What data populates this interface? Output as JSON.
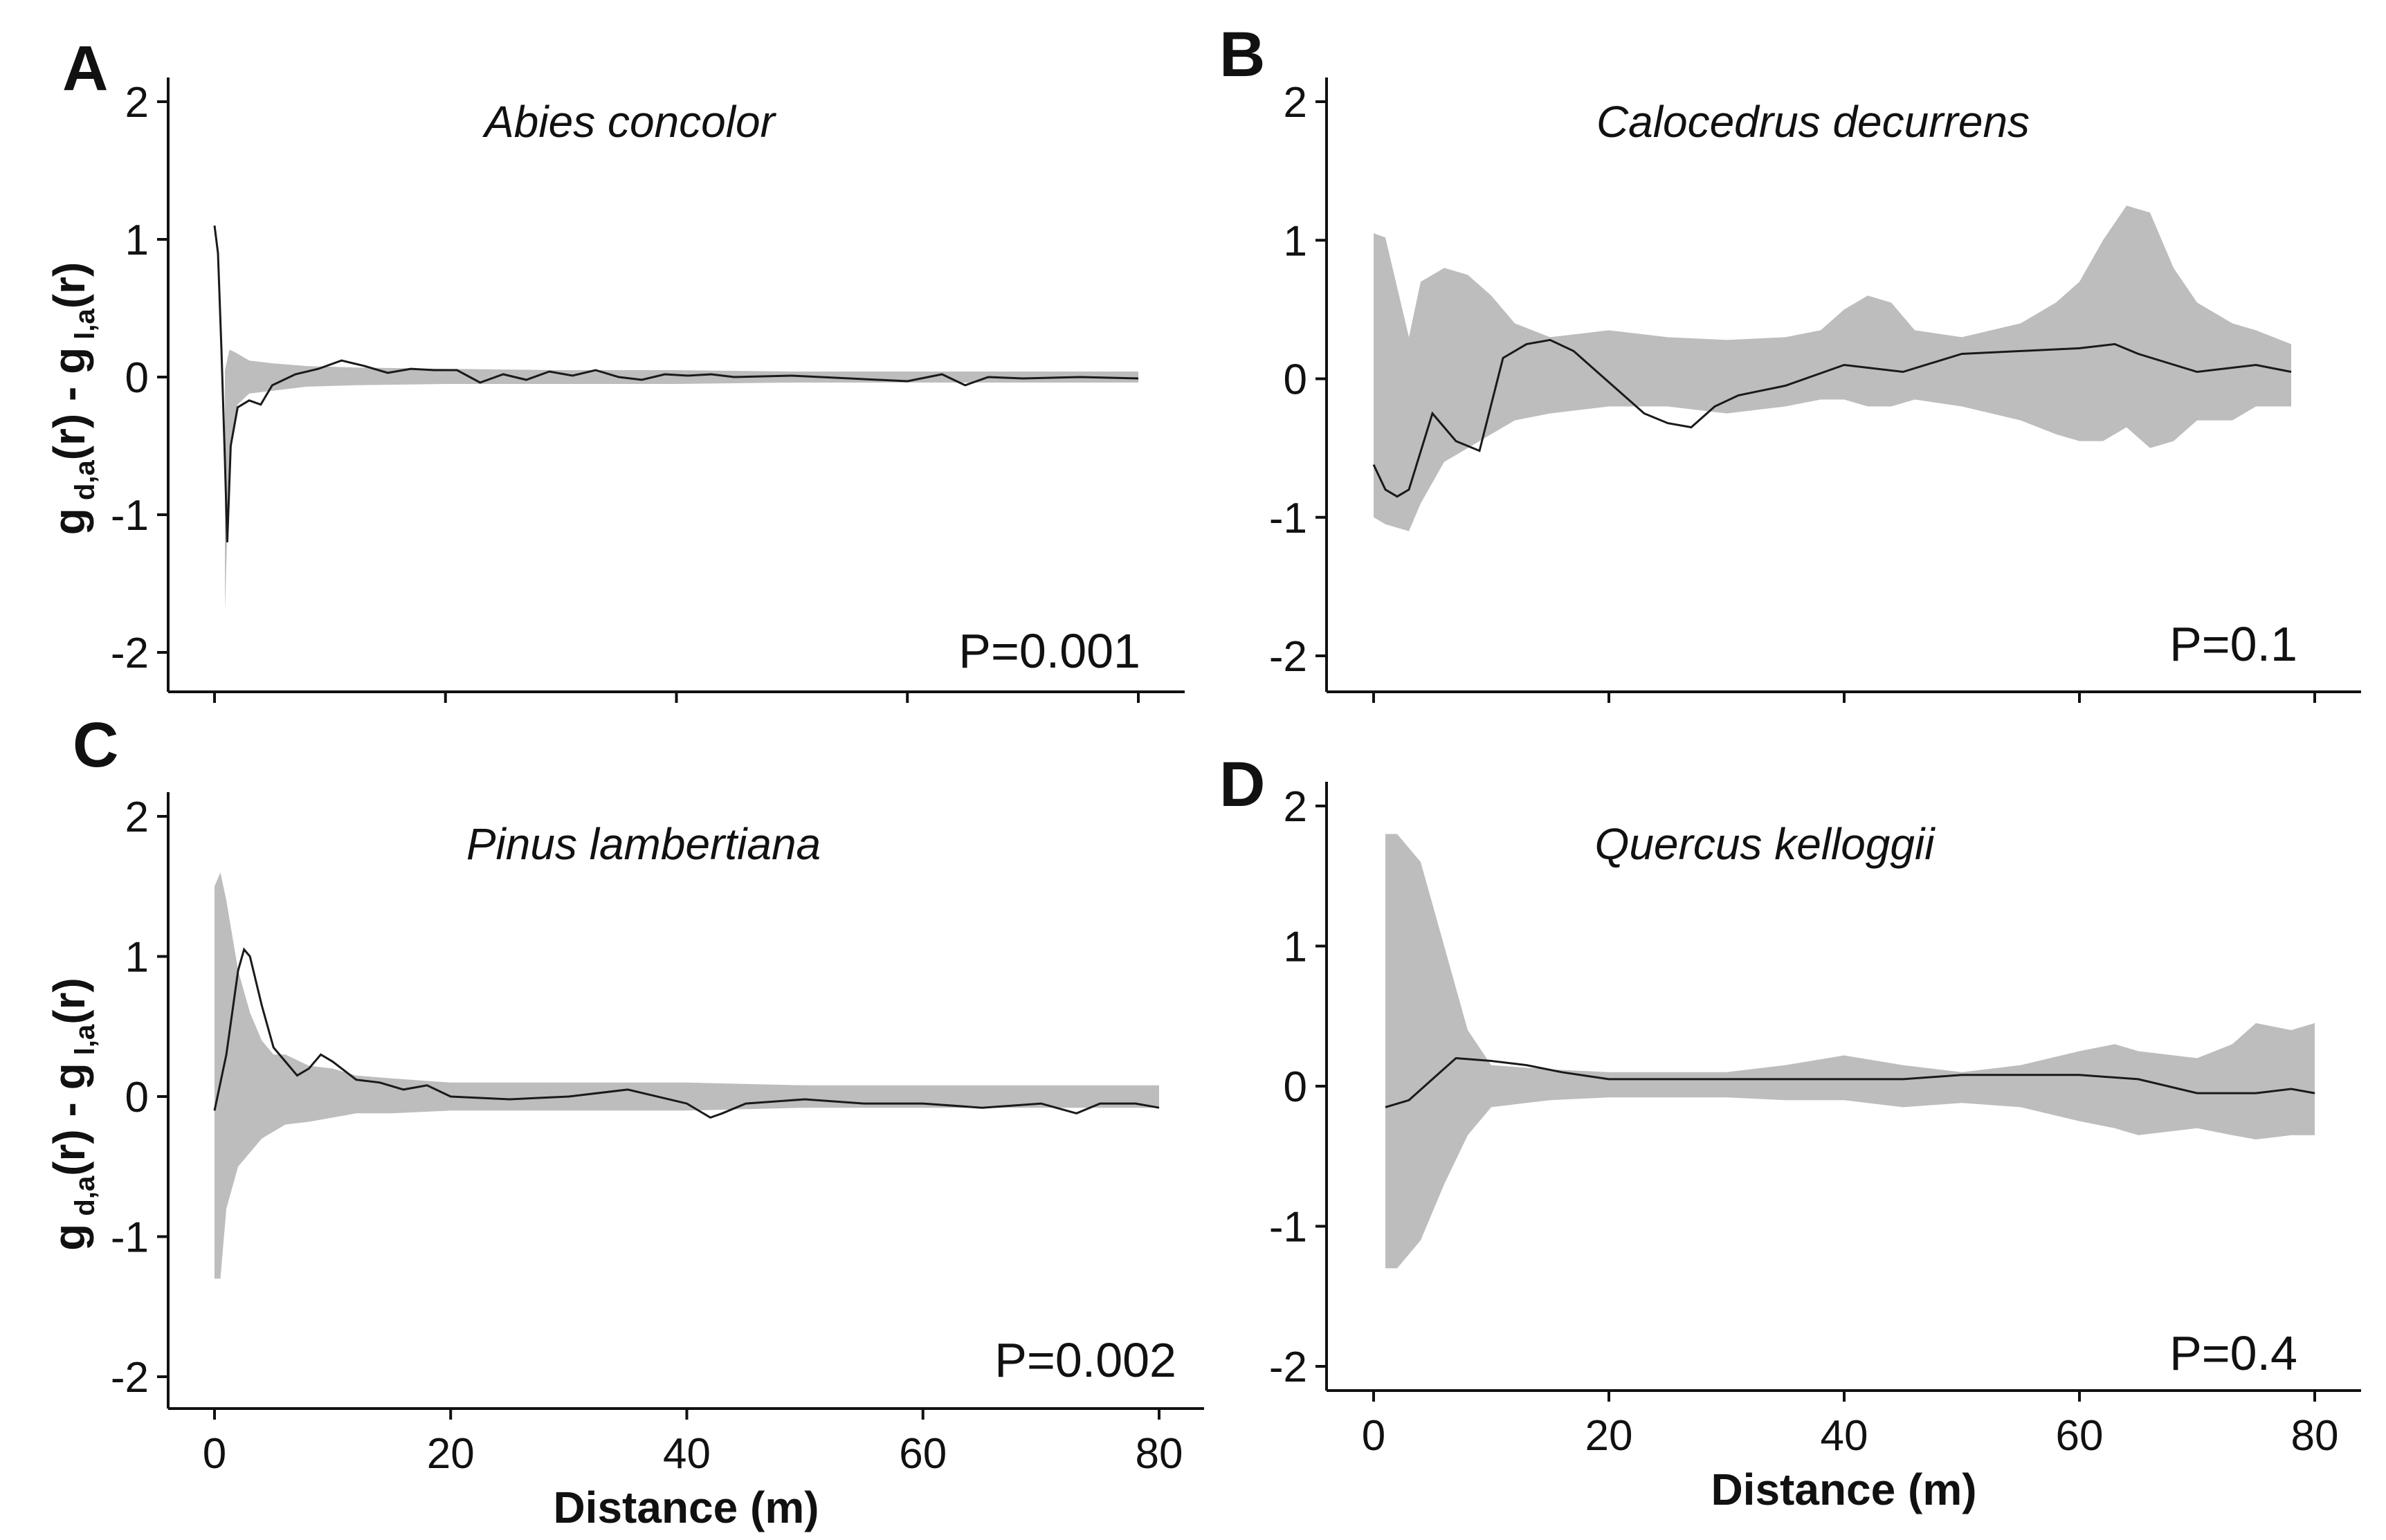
{
  "figure": {
    "xlabel": "Distance (m)",
    "ylabel": {
      "g": "g",
      "sub1": "d,a",
      "mid": "(r) - g",
      "sub2": "l,a",
      "end": "(r)"
    }
  },
  "colors": {
    "envelope": "#bdbdbd",
    "line": "#1a1a1a",
    "axis": "#111111"
  },
  "chart_data": [
    {
      "panel": "A",
      "type": "line",
      "title": "Abies concolor",
      "pvalue": "P=0.001",
      "xlabel": "",
      "ylabel": "g d,a(r) - g l,a(r)",
      "xlim": [
        -2,
        83
      ],
      "ylim": [
        -2.2,
        2.2
      ],
      "xticks": [
        0,
        20,
        40,
        60,
        80
      ],
      "yticks": [
        -2,
        -1,
        0,
        1,
        2
      ],
      "show_xtick_labels": false,
      "show_ylabel": true,
      "series": [
        {
          "name": "observed",
          "x": [
            0,
            0.3,
            0.6,
            0.9,
            1.1,
            1.4,
            2,
            3,
            4,
            5,
            7,
            9,
            11,
            13,
            15,
            17,
            19,
            21,
            23,
            25,
            27,
            29,
            31,
            33,
            35,
            37,
            39,
            41,
            43,
            45,
            50,
            55,
            60,
            63,
            65,
            67,
            70,
            75,
            80
          ],
          "values": [
            1.1,
            0.9,
            0.2,
            -0.6,
            -1.2,
            -0.5,
            -0.22,
            -0.17,
            -0.2,
            -0.06,
            0.02,
            0.06,
            0.12,
            0.08,
            0.03,
            0.06,
            0.05,
            0.05,
            -0.04,
            0.02,
            -0.02,
            0.04,
            0.01,
            0.05,
            0.0,
            -0.02,
            0.02,
            0.01,
            0.02,
            0.0,
            0.01,
            -0.01,
            -0.03,
            0.02,
            -0.06,
            0.0,
            -0.01,
            0.0,
            -0.01
          ]
        }
      ],
      "envelope": {
        "x": [
          0.9,
          1.3,
          2,
          3,
          5,
          8,
          12,
          20,
          30,
          40,
          50,
          60,
          70,
          80
        ],
        "upper": [
          0.05,
          0.2,
          0.17,
          0.12,
          0.1,
          0.08,
          0.07,
          0.06,
          0.05,
          0.05,
          0.04,
          0.04,
          0.04,
          0.04
        ],
        "lower": [
          -1.7,
          -0.6,
          -0.2,
          -0.12,
          -0.1,
          -0.07,
          -0.06,
          -0.05,
          -0.05,
          -0.05,
          -0.04,
          -0.04,
          -0.04,
          -0.04
        ]
      }
    },
    {
      "panel": "B",
      "type": "line",
      "title": "Calocedrus decurrens",
      "pvalue": "P=0.1",
      "xlabel": "",
      "ylabel": "",
      "xlim": [
        -4,
        84
      ],
      "ylim": [
        -2.2,
        2.2
      ],
      "xticks": [
        0,
        20,
        40,
        60,
        80
      ],
      "yticks": [
        -2,
        -1,
        0,
        1,
        2
      ],
      "show_xtick_labels": false,
      "show_ylabel": false,
      "series": [
        {
          "name": "observed",
          "x": [
            0,
            1,
            2,
            3,
            5,
            7,
            9,
            11,
            13,
            15,
            17,
            19,
            21,
            23,
            25,
            27,
            29,
            31,
            35,
            40,
            45,
            50,
            55,
            60,
            63,
            65,
            70,
            75,
            78
          ],
          "values": [
            -0.62,
            -0.8,
            -0.85,
            -0.8,
            -0.25,
            -0.45,
            -0.52,
            0.15,
            0.25,
            0.28,
            0.2,
            0.05,
            -0.1,
            -0.25,
            -0.32,
            -0.35,
            -0.2,
            -0.12,
            -0.05,
            0.1,
            0.05,
            0.18,
            0.2,
            0.22,
            0.25,
            0.18,
            0.05,
            0.1,
            0.05
          ]
        }
      ],
      "envelope": {
        "x": [
          0,
          1,
          3,
          4,
          6,
          8,
          10,
          12,
          15,
          20,
          25,
          30,
          35,
          38,
          40,
          42,
          44,
          46,
          50,
          55,
          58,
          60,
          62,
          64,
          66,
          68,
          70,
          73,
          75,
          78
        ],
        "upper": [
          1.05,
          1.02,
          0.3,
          0.7,
          0.8,
          0.75,
          0.6,
          0.4,
          0.3,
          0.35,
          0.3,
          0.28,
          0.3,
          0.35,
          0.5,
          0.6,
          0.55,
          0.35,
          0.3,
          0.4,
          0.55,
          0.7,
          1.0,
          1.25,
          1.2,
          0.8,
          0.55,
          0.4,
          0.35,
          0.25
        ],
        "lower": [
          -1.0,
          -1.05,
          -1.1,
          -0.9,
          -0.6,
          -0.5,
          -0.4,
          -0.3,
          -0.25,
          -0.2,
          -0.2,
          -0.25,
          -0.2,
          -0.15,
          -0.15,
          -0.2,
          -0.2,
          -0.15,
          -0.2,
          -0.3,
          -0.4,
          -0.45,
          -0.45,
          -0.35,
          -0.5,
          -0.45,
          -0.3,
          -0.3,
          -0.2,
          -0.2
        ]
      }
    },
    {
      "panel": "C",
      "type": "line",
      "title": "Pinus lambertiana",
      "pvalue": "P=0.002",
      "xlabel": "Distance (m)",
      "ylabel": "g d,a(r) - g l,a(r)",
      "xlim": [
        -4,
        84
      ],
      "ylim": [
        -2.2,
        2.2
      ],
      "xticks": [
        0,
        20,
        40,
        60,
        80
      ],
      "yticks": [
        -2,
        -1,
        0,
        1,
        2
      ],
      "show_xtick_labels": true,
      "show_ylabel": true,
      "series": [
        {
          "name": "observed",
          "x": [
            0,
            1,
            2,
            2.5,
            3,
            4,
            5,
            6,
            7,
            8,
            9,
            10,
            12,
            14,
            16,
            18,
            20,
            25,
            30,
            35,
            40,
            42,
            43,
            45,
            50,
            55,
            60,
            65,
            70,
            73,
            75,
            78,
            80
          ],
          "values": [
            -0.1,
            0.3,
            0.9,
            1.05,
            1.0,
            0.65,
            0.35,
            0.25,
            0.15,
            0.2,
            0.3,
            0.25,
            0.12,
            0.1,
            0.05,
            0.08,
            0.0,
            -0.02,
            0.0,
            0.05,
            -0.05,
            -0.15,
            -0.12,
            -0.05,
            -0.02,
            -0.05,
            -0.05,
            -0.08,
            -0.05,
            -0.12,
            -0.05,
            -0.05,
            -0.08
          ]
        }
      ],
      "envelope": {
        "x": [
          0,
          0.5,
          1,
          2,
          3,
          4,
          5,
          6,
          8,
          10,
          12,
          15,
          20,
          25,
          30,
          40,
          50,
          60,
          70,
          80
        ],
        "upper": [
          1.5,
          1.6,
          1.4,
          0.9,
          0.6,
          0.4,
          0.3,
          0.3,
          0.22,
          0.2,
          0.15,
          0.13,
          0.1,
          0.1,
          0.1,
          0.1,
          0.08,
          0.08,
          0.08,
          0.08
        ],
        "lower": [
          -1.3,
          -1.3,
          -0.8,
          -0.5,
          -0.4,
          -0.3,
          -0.25,
          -0.2,
          -0.18,
          -0.15,
          -0.12,
          -0.12,
          -0.1,
          -0.1,
          -0.1,
          -0.1,
          -0.08,
          -0.08,
          -0.08,
          -0.08
        ]
      }
    },
    {
      "panel": "D",
      "type": "line",
      "title": "Quercus kelloggii",
      "pvalue": "P=0.4",
      "xlabel": "Distance (m)",
      "ylabel": "",
      "xlim": [
        -4,
        84
      ],
      "ylim": [
        -2.2,
        2.2
      ],
      "xticks": [
        0,
        20,
        40,
        60,
        80
      ],
      "yticks": [
        -2,
        -1,
        0,
        1,
        2
      ],
      "show_xtick_labels": true,
      "show_ylabel": false,
      "series": [
        {
          "name": "observed",
          "x": [
            1,
            3,
            5,
            7,
            10,
            13,
            16,
            20,
            25,
            30,
            35,
            40,
            45,
            50,
            55,
            60,
            65,
            70,
            75,
            78,
            80
          ],
          "values": [
            -0.15,
            -0.1,
            0.05,
            0.2,
            0.18,
            0.15,
            0.1,
            0.05,
            0.05,
            0.05,
            0.05,
            0.05,
            0.05,
            0.08,
            0.08,
            0.08,
            0.05,
            -0.05,
            -0.05,
            -0.02,
            -0.05
          ]
        }
      ],
      "envelope": {
        "x": [
          1,
          2,
          4,
          6,
          8,
          10,
          15,
          20,
          30,
          35,
          40,
          45,
          50,
          55,
          60,
          63,
          65,
          70,
          73,
          75,
          78,
          80
        ],
        "upper": [
          1.8,
          1.8,
          1.6,
          1.0,
          0.4,
          0.15,
          0.12,
          0.1,
          0.1,
          0.15,
          0.22,
          0.15,
          0.1,
          0.15,
          0.25,
          0.3,
          0.25,
          0.2,
          0.3,
          0.45,
          0.4,
          0.45
        ],
        "lower": [
          -1.3,
          -1.3,
          -1.1,
          -0.7,
          -0.35,
          -0.15,
          -0.1,
          -0.08,
          -0.08,
          -0.1,
          -0.1,
          -0.15,
          -0.12,
          -0.15,
          -0.25,
          -0.3,
          -0.35,
          -0.3,
          -0.35,
          -0.38,
          -0.35,
          -0.35
        ]
      }
    }
  ]
}
